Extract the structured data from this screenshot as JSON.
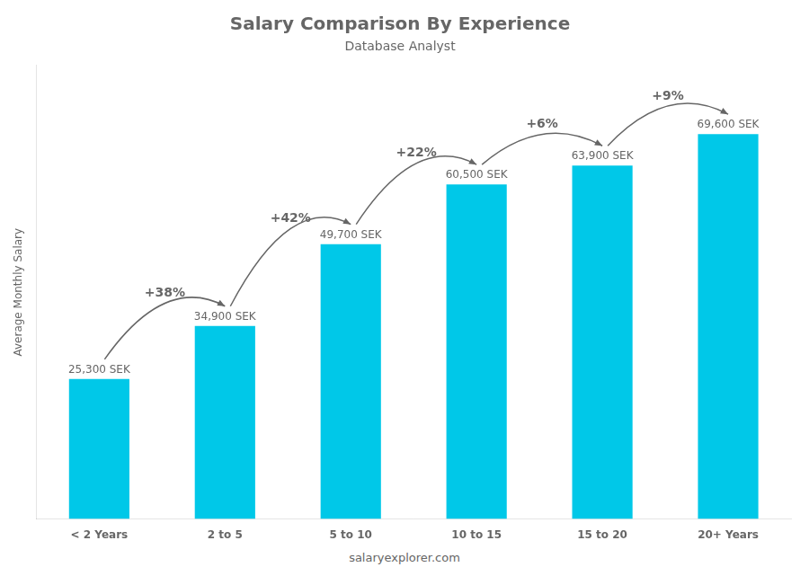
{
  "chart_data": {
    "type": "bar",
    "title": "Salary Comparison By Experience",
    "subtitle": "Database Analyst",
    "ylabel": "Average Monthly Salary",
    "categories": [
      "< 2 Years",
      "2 to 5",
      "5 to 10",
      "10 to 15",
      "15 to 20",
      "20+ Years"
    ],
    "values": [
      25300,
      34900,
      49700,
      60500,
      63900,
      69600
    ],
    "value_labels": [
      "25,300 SEK",
      "34,900 SEK",
      "49,700 SEK",
      "60,500 SEK",
      "63,900 SEK",
      "69,600 SEK"
    ],
    "data_labels": true,
    "color": "#00c8e8",
    "ylim": [
      0,
      82000
    ],
    "tick_labels": "x",
    "grid": false,
    "annotations": [
      {
        "text": "+38%",
        "from": "< 2 Years",
        "to": "2 to 5"
      },
      {
        "text": "+42%",
        "from": "2 to 5",
        "to": "5 to 10"
      },
      {
        "text": "+22%",
        "from": "5 to 10",
        "to": "10 to 15"
      },
      {
        "text": "+6%",
        "from": "10 to 15",
        "to": "15 to 20"
      },
      {
        "text": "+9%",
        "from": "15 to 20",
        "to": "20+ Years"
      }
    ],
    "watermark": "salaryexplorer.com"
  }
}
